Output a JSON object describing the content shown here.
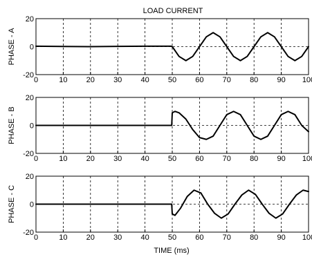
{
  "chart_data": [
    {
      "type": "line",
      "title": "LOAD CURRENT",
      "xlabel": "",
      "ylabel": "PHASE - A",
      "xlim": [
        0,
        100
      ],
      "ylim": [
        -20,
        20
      ],
      "xticks": [
        "0",
        "10",
        "20",
        "30",
        "40",
        "50",
        "60",
        "70",
        "80",
        "90",
        "100"
      ],
      "yticks": [
        "-20",
        "0",
        "20"
      ],
      "grid": true,
      "series": [
        {
          "values": {
            "x": [
              0,
              10,
              20,
              30,
              40,
              49.5,
              50,
              52.5,
              55,
              57.5,
              60,
              62.5,
              65,
              67.5,
              70,
              72.5,
              75,
              77.5,
              80,
              82.5,
              85,
              87.5,
              90,
              92.5,
              95,
              97.5,
              100
            ],
            "y": [
              0.3,
              0.1,
              0,
              0.2,
              0.3,
              0.3,
              0,
              -7,
              -10,
              -7,
              0,
              7,
              10,
              7,
              0,
              -7,
              -10,
              -7,
              0,
              7,
              10,
              7,
              0,
              -7,
              -10,
              -7,
              0
            ]
          }
        }
      ]
    },
    {
      "type": "line",
      "title": "",
      "xlabel": "",
      "ylabel": "PHASE - B",
      "xlim": [
        0,
        100
      ],
      "ylim": [
        -20,
        20
      ],
      "xticks": [
        "0",
        "10",
        "20",
        "30",
        "40",
        "50",
        "60",
        "70",
        "80",
        "90",
        "100"
      ],
      "yticks": [
        "-20",
        "0",
        "20"
      ],
      "grid": true,
      "series": [
        {
          "values": {
            "x": [
              0,
              49.8,
              50,
              51,
              52.5,
              55,
              57.5,
              60,
              62.5,
              65,
              67.5,
              70,
              72.5,
              75,
              77.5,
              80,
              82.5,
              85,
              87.5,
              90,
              92.5,
              95,
              97.5,
              100
            ],
            "y": [
              0,
              0,
              9,
              10,
              9,
              4.5,
              -3,
              -8.7,
              -10,
              -7.7,
              0,
              7.7,
              10,
              7.7,
              0,
              -7.7,
              -10,
              -7.7,
              0,
              7.7,
              10,
              7.7,
              0,
              -4.5
            ]
          }
        }
      ]
    },
    {
      "type": "line",
      "title": "",
      "xlabel": "TIME (ms)",
      "ylabel": "PHASE - C",
      "xlim": [
        0,
        100
      ],
      "ylim": [
        -20,
        20
      ],
      "xticks": [
        "0",
        "10",
        "20",
        "30",
        "40",
        "50",
        "60",
        "70",
        "80",
        "90",
        "100"
      ],
      "yticks": [
        "-20",
        "0",
        "20"
      ],
      "grid": true,
      "series": [
        {
          "values": {
            "x": [
              0,
              49.8,
              50,
              51,
              53,
              55.5,
              58,
              60.5,
              63,
              65.5,
              68,
              70.5,
              73,
              75.5,
              78,
              80.5,
              83,
              85.5,
              88,
              90.5,
              93,
              95.5,
              98,
              100
            ],
            "y": [
              0,
              0,
              -7,
              -8,
              -3,
              5.5,
              10,
              8,
              0,
              -6.5,
              -10,
              -7,
              0,
              6.5,
              10,
              7,
              0,
              -6.5,
              -10,
              -7,
              0,
              6.5,
              10,
              9
            ]
          }
        }
      ]
    }
  ]
}
